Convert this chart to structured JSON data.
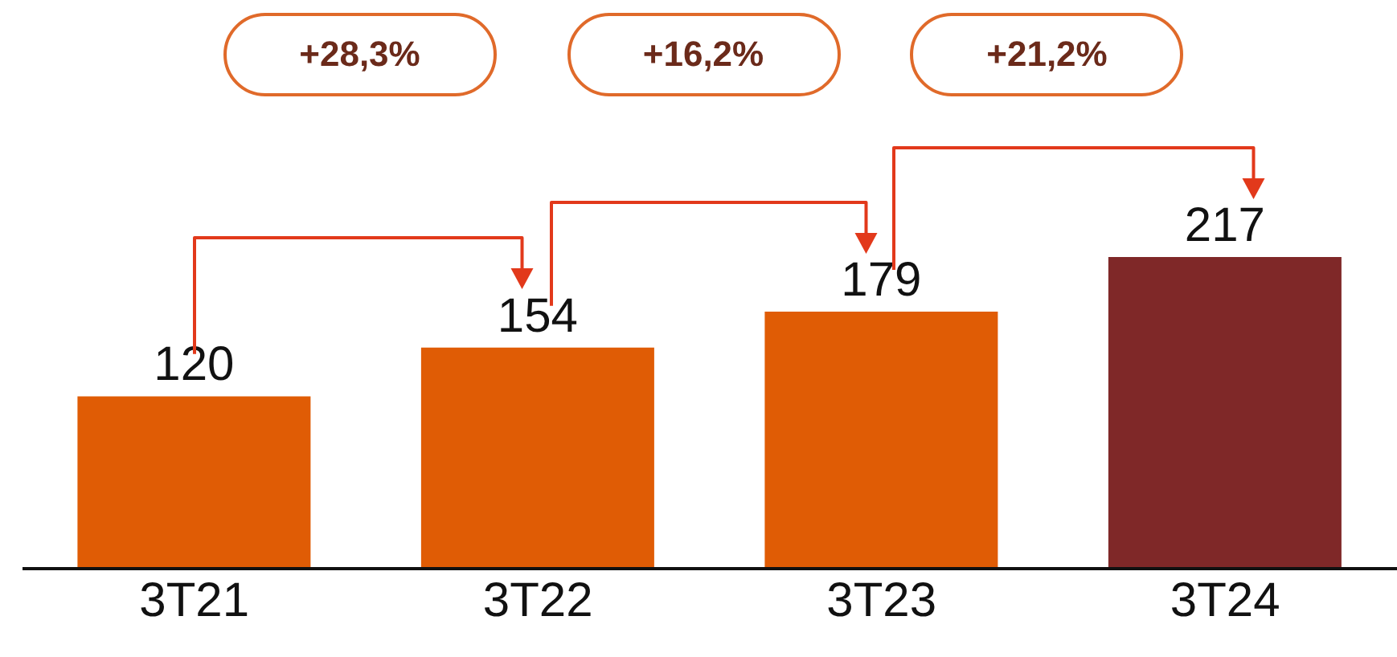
{
  "chart_data": {
    "type": "bar",
    "categories": [
      "3T21",
      "3T22",
      "3T23",
      "3T24"
    ],
    "values": [
      120,
      154,
      179,
      217
    ],
    "colors": [
      "#e05c05",
      "#e05c05",
      "#e05c05",
      "#7f2828"
    ],
    "data_labels": true,
    "annotations": [
      "+28,3%",
      "+16,2%",
      "+21,2%"
    ]
  }
}
